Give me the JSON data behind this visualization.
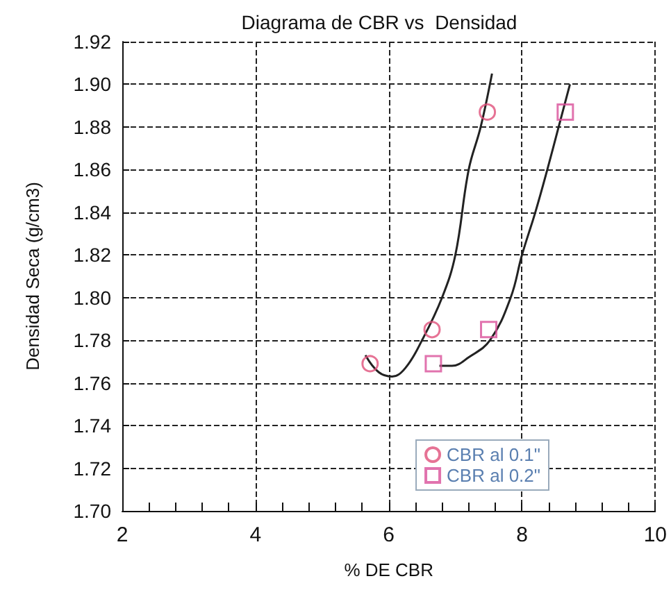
{
  "chart_data": {
    "type": "scatter",
    "title": "Diagrama de CBR vs  Densidad",
    "xlabel": "% DE CBR",
    "ylabel": "Densidad Seca (g/cm3)",
    "xlim": [
      2,
      10
    ],
    "xticks": [
      2,
      4,
      6,
      8,
      10
    ],
    "ylim": [
      1.7,
      1.92
    ],
    "yticks": [
      {
        "value": 1.7,
        "label": "1.70"
      },
      1.72,
      1.74,
      1.76,
      1.78,
      {
        "value": 1.8,
        "label": "1.80"
      },
      1.82,
      1.84,
      1.86,
      1.88,
      {
        "value": 1.9,
        "label": "1.90"
      },
      1.92
    ],
    "grid": true,
    "legend": "bottom right",
    "line_style": "dashed",
    "series": [
      {
        "name": "CBR al 0.1\"",
        "color": "#e0507a",
        "marker": "circle",
        "x": [
          5.72,
          6.65,
          7.48
        ],
        "values": [
          1.769,
          1.785,
          1.887
        ]
      },
      {
        "name": "CBR al 0.2\"",
        "color": "#d9509a",
        "marker": "square",
        "x": [
          6.67,
          7.5,
          8.65
        ],
        "values": [
          1.769,
          1.785,
          1.887
        ]
      },
      {
        "type": "line",
        "color": "#222222",
        "marker": "none",
        "line_style": "solid",
        "x": [
          5.65,
          5.85,
          6.05,
          6.25,
          6.5,
          6.8,
          7.0,
          7.2,
          7.38,
          7.55
        ],
        "values": [
          1.773,
          1.765,
          1.763,
          1.767,
          1.78,
          1.8,
          1.82,
          1.86,
          1.88,
          1.905
        ]
      },
      {
        "type": "line",
        "color": "#222222",
        "marker": "none",
        "line_style": "solid",
        "x": [
          6.76,
          6.95,
          7.2,
          7.52,
          7.83,
          8.0,
          8.2,
          8.38,
          8.55,
          8.72
        ],
        "values": [
          1.768,
          1.768,
          1.772,
          1.78,
          1.8,
          1.82,
          1.84,
          1.86,
          1.88,
          1.9
        ]
      }
    ]
  }
}
